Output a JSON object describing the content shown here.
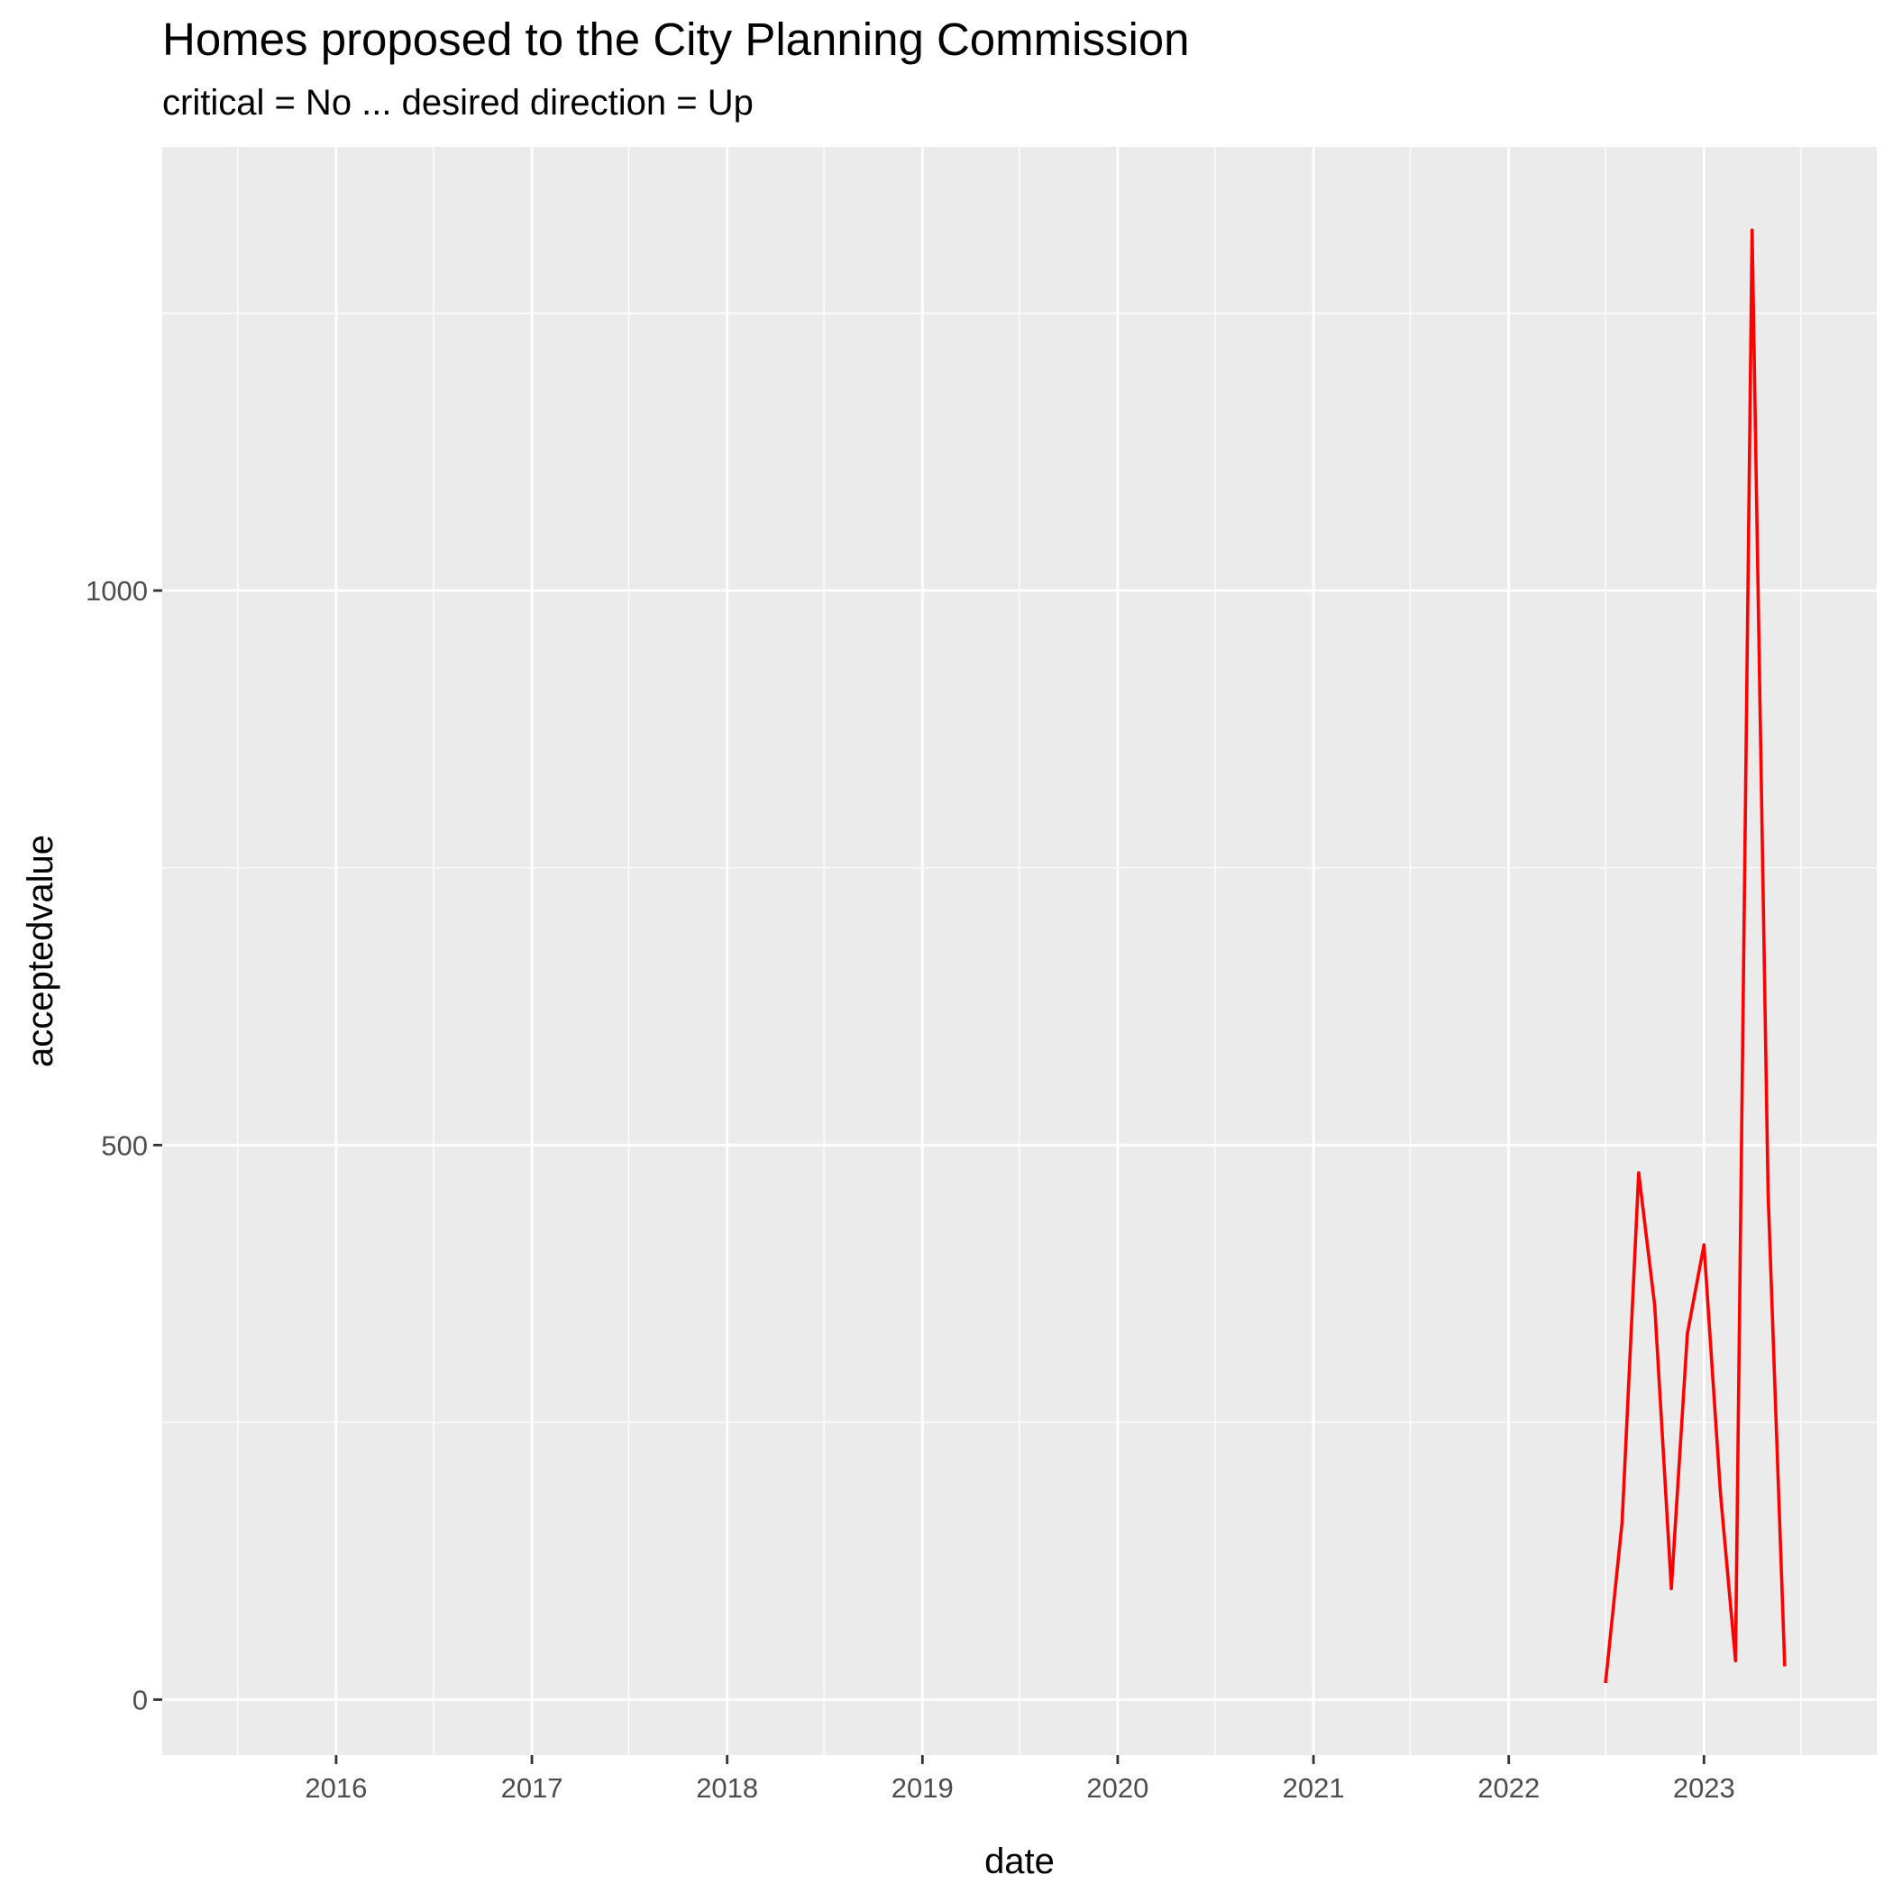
{
  "chart_data": {
    "type": "line",
    "title": "Homes proposed to the City Planning Commission",
    "subtitle": "critical = No ... desired direction = Up",
    "xlabel": "date",
    "ylabel": "acceptedvalue",
    "x_ticks": [
      "2016",
      "2017",
      "2018",
      "2019",
      "2020",
      "2021",
      "2022",
      "2023"
    ],
    "y_ticks": [
      0,
      500,
      1000
    ],
    "xlim": [
      "2015-02-10",
      "2023-11-20"
    ],
    "ylim": [
      -50,
      1400
    ],
    "grid": true,
    "legend": "none",
    "series": [
      {
        "color": "#FF0000",
        "x": [
          "2022-07-01",
          "2022-08-01",
          "2022-09-01",
          "2022-10-01",
          "2022-11-01",
          "2022-12-01",
          "2023-01-01",
          "2023-02-01",
          "2023-03-01",
          "2023-04-01",
          "2023-05-01",
          "2023-06-01"
        ],
        "values": [
          15,
          160,
          475,
          355,
          100,
          330,
          410,
          185,
          35,
          1325,
          455,
          30
        ]
      }
    ]
  }
}
